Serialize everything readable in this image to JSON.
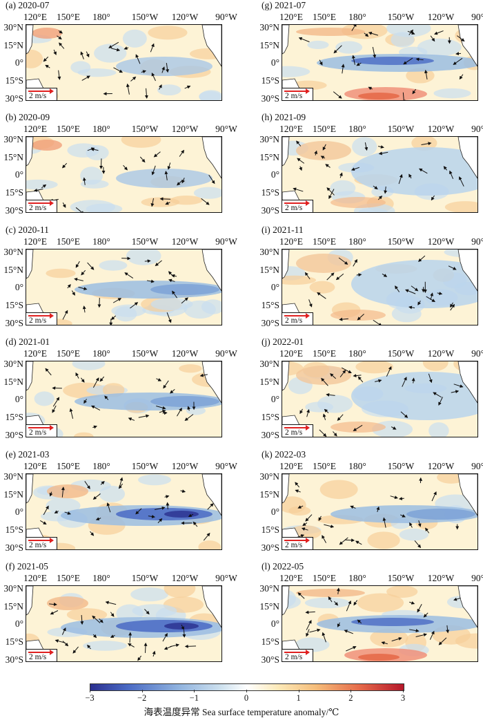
{
  "longitude_ticks": [
    "120°E",
    "150°E",
    "180°",
    "150°W",
    "120°W",
    "90°W"
  ],
  "latitude_ticks": [
    "30°N",
    "15°N",
    "0°",
    "15°S",
    "30°S"
  ],
  "scale_label": "2 m/s",
  "colors": {
    "scale_arrow": "#e02020",
    "warm": "#e56a4a",
    "cold": "#4a6ac4",
    "neutral": "#fdf3d6"
  },
  "panels": [
    {
      "label": "(a) 2020-07",
      "pattern": "weak-cold-east"
    },
    {
      "label": "(b) 2020-09",
      "pattern": "weak-cold-east"
    },
    {
      "label": "(c) 2020-11",
      "pattern": "cold-band"
    },
    {
      "label": "(d) 2021-01",
      "pattern": "cold-band"
    },
    {
      "label": "(e) 2021-03",
      "pattern": "strong-cold-band"
    },
    {
      "label": "(f) 2021-05",
      "pattern": "strong-cold-band"
    },
    {
      "label": "(g) 2021-07",
      "pattern": "cold-band-warm-south"
    },
    {
      "label": "(h) 2021-09",
      "pattern": "cold-east-broad"
    },
    {
      "label": "(i) 2021-11",
      "pattern": "cold-east-broad"
    },
    {
      "label": "(j) 2022-01",
      "pattern": "cold-east-broad"
    },
    {
      "label": "(k) 2022-03",
      "pattern": "cold-band"
    },
    {
      "label": "(l) 2022-05",
      "pattern": "cold-band-warm-south"
    }
  ],
  "colorbar": {
    "ticks": [
      "-3",
      "-2",
      "-1",
      "0",
      "1",
      "2",
      "3"
    ],
    "range": [
      -3,
      3
    ],
    "title": "海表温度异常 Sea surface temperature anomaly/℃"
  }
}
